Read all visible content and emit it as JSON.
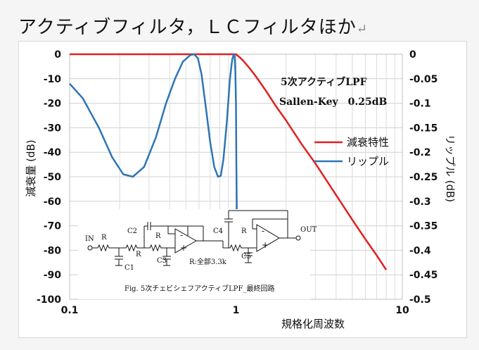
{
  "page": {
    "heading": "アクティブフィルタ，ＬＣフィルタほか",
    "paragraph_mark": "↵"
  },
  "chart_data": {
    "type": "line",
    "x_scale": "log",
    "xlim": [
      0.1,
      10
    ],
    "x_ticks": [
      "0.1",
      "1",
      "10"
    ],
    "xlabel": "規格化周波数",
    "ylabel_left": "減衰量 (dB)",
    "ylim_left": [
      -100,
      0
    ],
    "y_ticks_left": [
      "0",
      "-10",
      "-20",
      "-30",
      "-40",
      "-50",
      "-60",
      "-70",
      "-80",
      "-90",
      "-100"
    ],
    "ylabel_right": "リップル (dB)",
    "ylim_right": [
      -0.5,
      0
    ],
    "y_ticks_right": [
      "0",
      "-0.05",
      "-0.1",
      "-0.15",
      "-0.2",
      "-0.25",
      "-0.3",
      "-0.35",
      "-0.4",
      "-0.45",
      "-0.5"
    ],
    "grid": true,
    "annotation_title": "5次アクティブLPF",
    "annotation_subtitle": "Sallen-Key　0.25dB",
    "legend_position": "right",
    "series": [
      {
        "name": "減衰特性",
        "axis": "left",
        "color": "#e02020",
        "x": [
          0.1,
          0.3,
          0.6,
          0.9,
          1.0,
          1.05,
          1.1,
          1.2,
          1.3,
          1.5,
          1.75,
          2.0,
          2.5,
          3.0,
          4.0,
          5.0,
          6.0,
          7.0,
          8.0
        ],
        "y": [
          0,
          0,
          0,
          0,
          0,
          -1.2,
          -2.5,
          -5.5,
          -8.5,
          -14.5,
          -21.5,
          -27.0,
          -37.0,
          -44.5,
          -57.5,
          -67.5,
          -75.5,
          -82.0,
          -88.0
        ]
      },
      {
        "name": "リップル",
        "axis": "right",
        "color": "#2e75b6",
        "x": [
          0.1,
          0.12,
          0.15,
          0.18,
          0.21,
          0.24,
          0.28,
          0.33,
          0.38,
          0.43,
          0.48,
          0.53,
          0.56,
          0.59,
          0.62,
          0.66,
          0.7,
          0.74,
          0.78,
          0.81,
          0.84,
          0.88,
          0.92,
          0.95,
          0.97,
          0.98,
          0.99,
          1.0,
          1.005,
          1.012
        ],
        "y": [
          -0.06,
          -0.09,
          -0.15,
          -0.21,
          -0.245,
          -0.25,
          -0.23,
          -0.17,
          -0.1,
          -0.05,
          -0.015,
          -0.002,
          0,
          -0.008,
          -0.04,
          -0.11,
          -0.18,
          -0.23,
          -0.25,
          -0.248,
          -0.215,
          -0.14,
          -0.05,
          -0.01,
          0,
          -0.003,
          -0.03,
          -0.1,
          -0.22,
          -0.32
        ]
      }
    ],
    "schematic": {
      "caption": "Fig. 5次チェビシェフアクティブLPF_最終回路",
      "labels": {
        "in": "IN",
        "out": "OUT",
        "r1": "R",
        "r2": "R",
        "r3": "R",
        "r4": "R",
        "c1": "C1",
        "c2": "C2",
        "c3": "C3",
        "c4": "C4",
        "c5": "C5",
        "note": "R:全部3.3k",
        "minus1": "-",
        "plus1": "+",
        "minus2": "-",
        "plus2": "+"
      }
    }
  }
}
